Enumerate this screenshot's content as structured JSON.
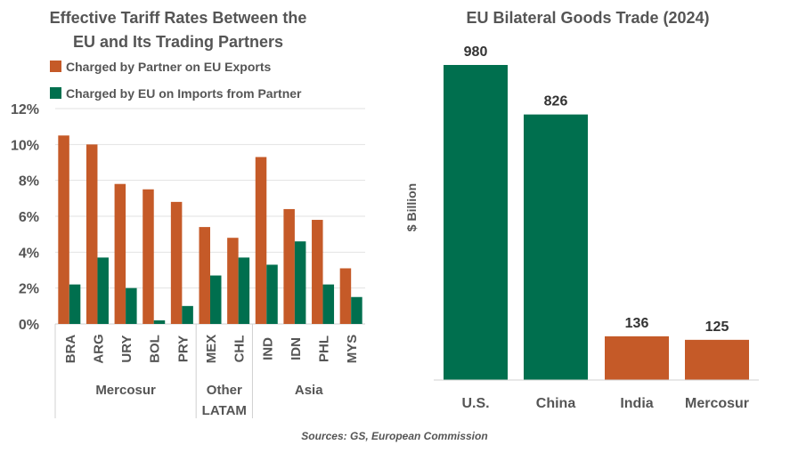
{
  "chart_data": [
    {
      "type": "bar",
      "title": [
        "Effective Tariff Rates Between the",
        "EU and Its Trading Partners"
      ],
      "categories": [
        "BRA",
        "ARG",
        "URY",
        "BOL",
        "PRY",
        "MEX",
        "CHL",
        "IND",
        "IDN",
        "PHL",
        "MYS"
      ],
      "groups": [
        {
          "label": [
            "Mercosur"
          ],
          "count": 5
        },
        {
          "label": [
            "Other",
            "LATAM"
          ],
          "count": 2
        },
        {
          "label": [
            "Asia"
          ],
          "count": 4
        }
      ],
      "series": [
        {
          "name": "Charged by Partner on EU Exports",
          "color": "#C55A28",
          "values": [
            10.5,
            10.0,
            7.8,
            7.5,
            6.8,
            5.4,
            4.8,
            9.3,
            6.4,
            5.8,
            3.1
          ]
        },
        {
          "name": "Charged by EU on Imports from Partner",
          "color": "#006F4E",
          "values": [
            2.2,
            3.7,
            2.0,
            0.2,
            1.0,
            2.7,
            3.7,
            3.3,
            4.6,
            2.2,
            1.5
          ]
        }
      ],
      "ylim": [
        0,
        12
      ],
      "yticks": [
        "0%",
        "2%",
        "4%",
        "6%",
        "8%",
        "10%",
        "12%"
      ],
      "grid": true,
      "legend": "top-left"
    },
    {
      "type": "bar",
      "title": "EU Bilateral Goods Trade (2024)",
      "ylabel": "$ Billion",
      "categories": [
        "U.S.",
        "China",
        "India",
        "Mercosur"
      ],
      "values": [
        980,
        826,
        136,
        125
      ],
      "colors": [
        "#006F4E",
        "#006F4E",
        "#C55A28",
        "#C55A28"
      ],
      "ylim": [
        0,
        980
      ],
      "grid": false
    }
  ],
  "source": "Sources: GS, European Commission"
}
